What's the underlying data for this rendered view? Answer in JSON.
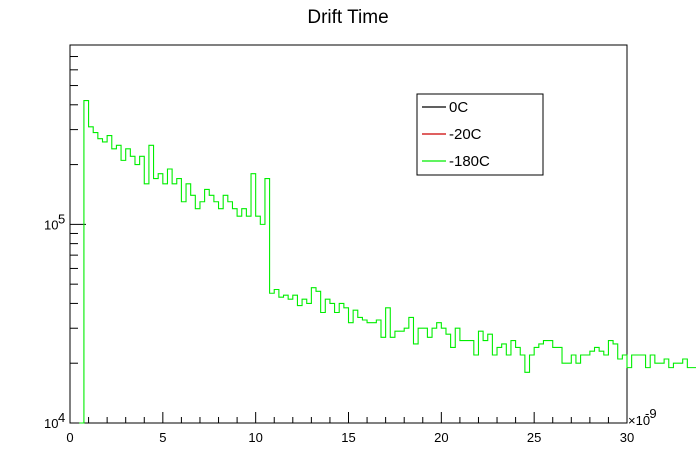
{
  "chart_data": {
    "type": "histogram",
    "title": "Drift Time",
    "xlabel": "",
    "ylabel": "",
    "x_multiplier_label": "×10",
    "x_multiplier_exp": "-9",
    "xlim": [
      0,
      30
    ],
    "ylim": [
      10000,
      800000
    ],
    "yscale": "log",
    "grid": false,
    "legend_position": "top-right",
    "x_ticks": [
      {
        "value": 0,
        "label": "0"
      },
      {
        "value": 5,
        "label": "5"
      },
      {
        "value": 10,
        "label": "10"
      },
      {
        "value": 15,
        "label": "15"
      },
      {
        "value": 20,
        "label": "20"
      },
      {
        "value": 25,
        "label": "25"
      },
      {
        "value": 30,
        "label": "30"
      }
    ],
    "y_major_ticks": [
      {
        "value": 10000,
        "base": "10",
        "exp": "4"
      },
      {
        "value": 100000,
        "base": "10",
        "exp": "5"
      }
    ],
    "bin_width": 0.25,
    "bin_start": 0.5,
    "series": [
      {
        "name": "0C",
        "color": "#000000",
        "values": []
      },
      {
        "name": "-20C",
        "color": "#cc0000",
        "values": []
      },
      {
        "name": "-180C",
        "color": "#00ee00",
        "values": [
          10000,
          420000,
          310000,
          290000,
          270000,
          260000,
          280000,
          240000,
          250000,
          210000,
          240000,
          220000,
          200000,
          220000,
          160000,
          250000,
          170000,
          180000,
          160000,
          190000,
          160000,
          170000,
          130000,
          160000,
          140000,
          120000,
          130000,
          150000,
          140000,
          130000,
          120000,
          140000,
          130000,
          120000,
          110000,
          120000,
          110000,
          180000,
          110000,
          100000,
          170000,
          45000,
          47000,
          43000,
          44000,
          42000,
          44000,
          39000,
          42000,
          40000,
          48000,
          46000,
          36000,
          42000,
          40000,
          36000,
          40000,
          38000,
          32000,
          37000,
          34000,
          33000,
          32000,
          32000,
          33000,
          27000,
          38000,
          27000,
          29000,
          29000,
          30000,
          34000,
          25000,
          30000,
          30000,
          27000,
          30000,
          32000,
          30000,
          28000,
          24000,
          30000,
          26000,
          26000,
          26000,
          22000,
          29000,
          26000,
          28000,
          22000,
          24000,
          25000,
          22000,
          26000,
          24000,
          22000,
          18000,
          22000,
          24000,
          25000,
          26000,
          26000,
          24000,
          24000,
          20000,
          20000,
          22000,
          20000,
          22000,
          22000,
          23000,
          24000,
          23000,
          22000,
          26000,
          25000,
          21000,
          22000,
          19000,
          22000,
          22000,
          22000,
          19000,
          22000,
          20000,
          20000,
          21000,
          19000,
          20000,
          20000,
          21000,
          19000,
          19000,
          20000,
          18500,
          19000,
          19000,
          17000,
          20000,
          17000,
          17000,
          17000,
          17000,
          17000,
          18000,
          17000,
          17000,
          16000,
          17000,
          16000,
          16000,
          15500,
          15000,
          15000,
          15000,
          14000,
          15000,
          14500,
          14000,
          13500,
          14000,
          13000,
          14000,
          13000,
          13500,
          12500,
          13000,
          12500,
          13000,
          12000,
          12500,
          12000,
          12000,
          11500,
          12000,
          11500,
          11000,
          11500,
          11000,
          11000,
          11000,
          11000,
          10500,
          11000,
          10500,
          10500,
          10500,
          10500,
          10000,
          10500,
          10500,
          10000,
          10500,
          10000,
          10000,
          10000
        ]
      }
    ]
  }
}
